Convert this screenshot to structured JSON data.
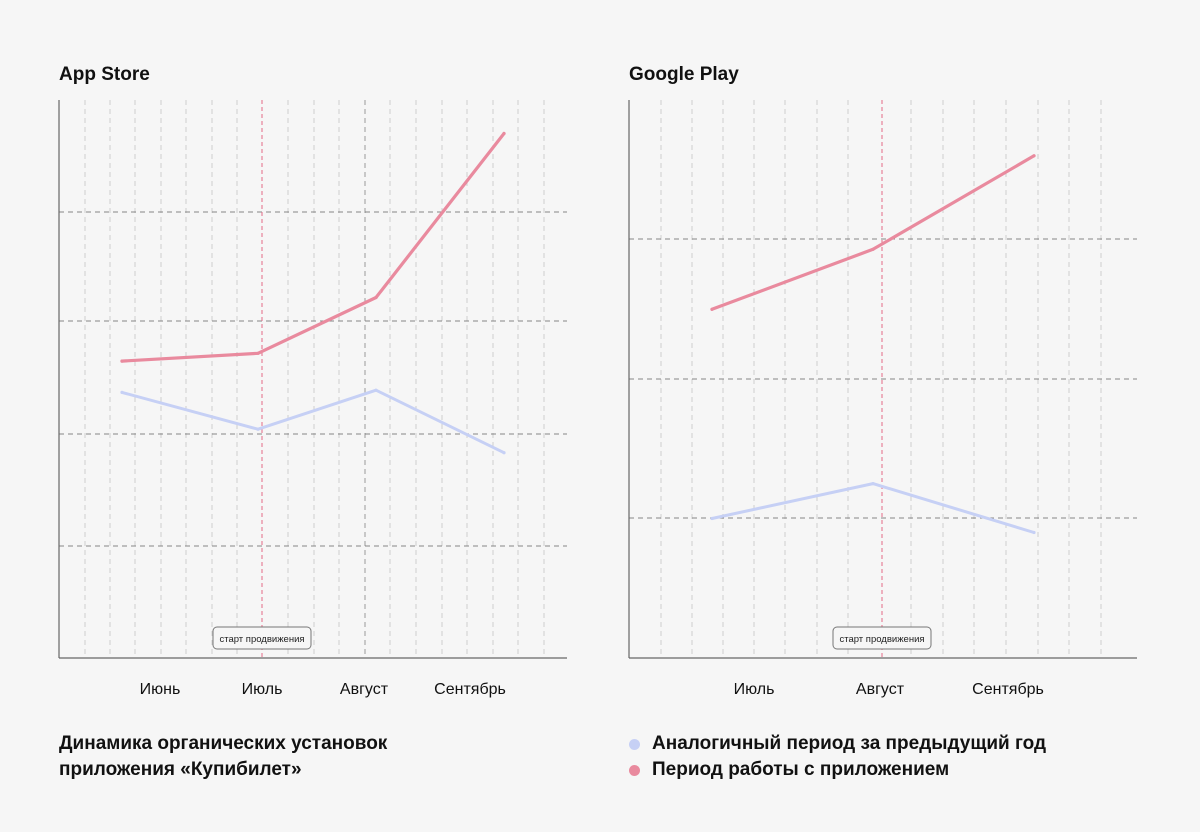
{
  "colors": {
    "current": "#e98a9e",
    "previous": "#c6d0f5",
    "grid": "#9a9a9a",
    "axis": "#666666",
    "start_line": "#e46a86"
  },
  "caption": {
    "line1": "Динамика органических установок",
    "line2": "приложения «Купибилет»"
  },
  "legend": {
    "previous": "Аналогичный период за предыдущий год",
    "current": "Период работы с приложением"
  },
  "chart_data": [
    {
      "type": "line",
      "title": "App Store",
      "categories": [
        "Июнь",
        "Июль",
        "Август",
        "Сентябрь"
      ],
      "annotation": "старт продвижения",
      "annotation_at": "Июль",
      "series": [
        {
          "key": "current",
          "values": [
            2.66,
            2.73,
            3.23,
            4.7
          ]
        },
        {
          "key": "previous",
          "values": [
            2.38,
            2.05,
            2.4,
            1.84
          ]
        }
      ],
      "ylim": [
        0,
        5
      ],
      "grid": true
    },
    {
      "type": "line",
      "title": "Google Play",
      "categories": [
        "Июль",
        "Август",
        "Сентябрь"
      ],
      "annotation": "старт продвижения",
      "annotation_at": "Август",
      "series": [
        {
          "key": "current",
          "values": [
            2.5,
            2.93,
            3.6
          ]
        },
        {
          "key": "previous",
          "values": [
            1.0,
            1.25,
            0.9
          ]
        }
      ],
      "ylim": [
        0,
        4
      ],
      "grid": true
    }
  ]
}
